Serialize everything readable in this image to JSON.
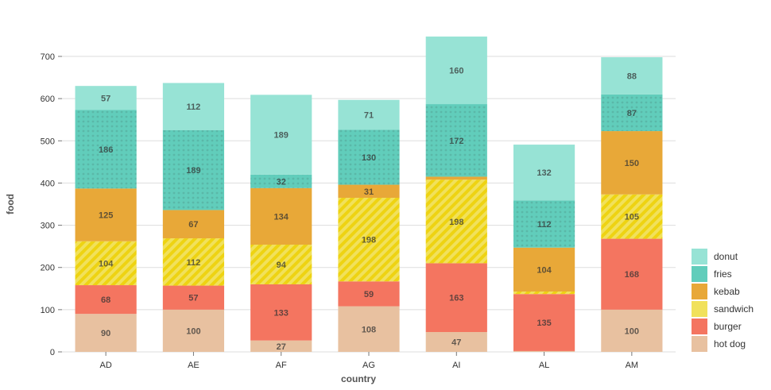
{
  "chart_data": {
    "type": "bar",
    "stacked": true,
    "title": "",
    "xlabel": "country",
    "ylabel": "food",
    "ylim": [
      0,
      700
    ],
    "yticks": [
      0,
      100,
      200,
      300,
      400,
      500,
      600,
      700
    ],
    "categories": [
      "AD",
      "AE",
      "AF",
      "AG",
      "AI",
      "AL",
      "AM"
    ],
    "series": [
      {
        "name": "hot dog",
        "color": "#e8c1a0",
        "pattern": "none",
        "values": [
          90,
          100,
          27,
          108,
          47,
          2,
          100
        ]
      },
      {
        "name": "burger",
        "color": "#f47560",
        "pattern": "none",
        "values": [
          68,
          57,
          133,
          59,
          163,
          135,
          168
        ]
      },
      {
        "name": "sandwich",
        "color": "#f1e15b",
        "pattern": "lines",
        "values": [
          104,
          112,
          94,
          198,
          198,
          6,
          105
        ]
      },
      {
        "name": "kebab",
        "color": "#e8a838",
        "pattern": "none",
        "values": [
          125,
          67,
          134,
          31,
          7,
          104,
          150
        ]
      },
      {
        "name": "fries",
        "color": "#61cdbb",
        "pattern": "dots",
        "values": [
          186,
          189,
          32,
          130,
          172,
          112,
          87
        ]
      },
      {
        "name": "donut",
        "color": "#97e3d5",
        "pattern": "none",
        "values": [
          57,
          112,
          189,
          71,
          160,
          132,
          88
        ]
      }
    ],
    "legend": {
      "placement": "bottom-right",
      "order": [
        "donut",
        "fries",
        "kebab",
        "sandwich",
        "burger",
        "hot dog"
      ]
    },
    "grid": true
  }
}
